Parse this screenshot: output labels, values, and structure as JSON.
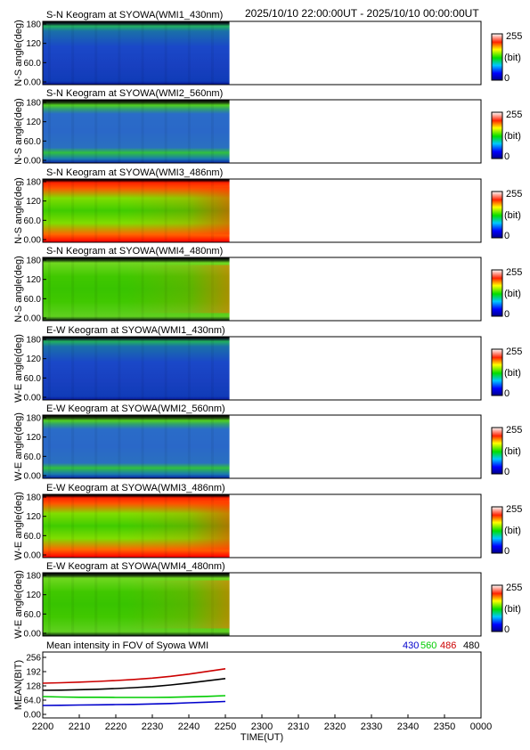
{
  "header": {
    "time_range": "2025/10/10 22:00:00UT - 2025/10/10 00:00:00UT"
  },
  "colorbar": {
    "max_label": "255",
    "unit_label": "(bit)",
    "min_label": "0"
  },
  "chart_data": [
    {
      "type": "heatmap",
      "title": "S-N Keogram at SYOWA(WMI1_430nm)",
      "ylabel": "N-S angle(deg)",
      "yticks": [
        "180",
        "120",
        "60.0",
        "0.00"
      ],
      "ylim": [
        0,
        180
      ],
      "data_extent": [
        "2200",
        "2251"
      ],
      "profile": "faint_top"
    },
    {
      "type": "heatmap",
      "title": "S-N Keogram at SYOWA(WMI2_560nm)",
      "ylabel": "N-S angle(deg)",
      "yticks": [
        "180",
        "120",
        "60.0",
        "0.00"
      ],
      "ylim": [
        0,
        180
      ],
      "data_extent": [
        "2200",
        "2251"
      ],
      "profile": "bands"
    },
    {
      "type": "heatmap",
      "title": "S-N Keogram at SYOWA(WMI3_486nm)",
      "ylabel": "N-S angle(deg)",
      "yticks": [
        "180",
        "120",
        "60.0",
        "0.00"
      ],
      "ylim": [
        0,
        180
      ],
      "data_extent": [
        "2200",
        "2251"
      ],
      "profile": "bright_edges"
    },
    {
      "type": "heatmap",
      "title": "S-N Keogram at SYOWA(WMI4_480nm)",
      "ylabel": "N-S angle(deg)",
      "yticks": [
        "180",
        "120",
        "60.0",
        "0.00"
      ],
      "ylim": [
        0,
        180
      ],
      "data_extent": [
        "2200",
        "2251"
      ],
      "profile": "green_edges"
    },
    {
      "type": "heatmap",
      "title": "E-W Keogram at SYOWA(WMI1_430nm)",
      "ylabel": "W-E angle(deg)",
      "yticks": [
        "180",
        "120",
        "60.0",
        "0.00"
      ],
      "ylim": [
        0,
        180
      ],
      "data_extent": [
        "2200",
        "2251"
      ],
      "profile": "faint_top"
    },
    {
      "type": "heatmap",
      "title": "E-W Keogram at SYOWA(WMI2_560nm)",
      "ylabel": "W-E angle(deg)",
      "yticks": [
        "180",
        "120",
        "60.0",
        "0.00"
      ],
      "ylim": [
        0,
        180
      ],
      "data_extent": [
        "2200",
        "2251"
      ],
      "profile": "bands"
    },
    {
      "type": "heatmap",
      "title": "E-W Keogram at SYOWA(WMI3_486nm)",
      "ylabel": "W-E angle(deg)",
      "yticks": [
        "180",
        "120",
        "60.0",
        "0.00"
      ],
      "ylim": [
        0,
        180
      ],
      "data_extent": [
        "2200",
        "2251"
      ],
      "profile": "bright_edges"
    },
    {
      "type": "heatmap",
      "title": "E-W Keogram at SYOWA(WMI4_480nm)",
      "ylabel": "W-E angle(deg)",
      "yticks": [
        "180",
        "120",
        "60.0",
        "0.00"
      ],
      "ylim": [
        0,
        180
      ],
      "data_extent": [
        "2200",
        "2251"
      ],
      "profile": "green_edges"
    },
    {
      "type": "line",
      "title": "Mean intensity in FOV of Syowa WMI",
      "ylabel": "MEAN(BIT)",
      "xlabel": "TIME(UT)",
      "ylim": [
        0,
        256
      ],
      "yticks": [
        "256",
        "192",
        "128",
        "64.0",
        "0.00"
      ],
      "xticks": [
        "2200",
        "2210",
        "2220",
        "2230",
        "2240",
        "2250",
        "2300",
        "2310",
        "2320",
        "2330",
        "2340",
        "2350",
        "0000"
      ],
      "x": [
        0,
        5,
        10,
        15,
        20,
        25,
        30,
        35,
        40,
        45,
        50
      ],
      "series": [
        {
          "name": "430",
          "color": "#0000cc",
          "values": [
            40,
            41,
            42,
            43,
            44,
            45,
            47,
            49,
            52,
            55,
            58
          ]
        },
        {
          "name": "560",
          "color": "#00cc00",
          "values": [
            80,
            78,
            77,
            77,
            76,
            76,
            76,
            77,
            79,
            81,
            84
          ]
        },
        {
          "name": "486",
          "color": "#cc0000",
          "values": [
            140,
            142,
            145,
            148,
            152,
            157,
            163,
            171,
            181,
            193,
            205
          ]
        },
        {
          "name": "480",
          "color": "#000000",
          "values": [
            108,
            109,
            111,
            113,
            116,
            120,
            125,
            132,
            141,
            151,
            161
          ]
        }
      ],
      "legend": "top-right"
    }
  ]
}
